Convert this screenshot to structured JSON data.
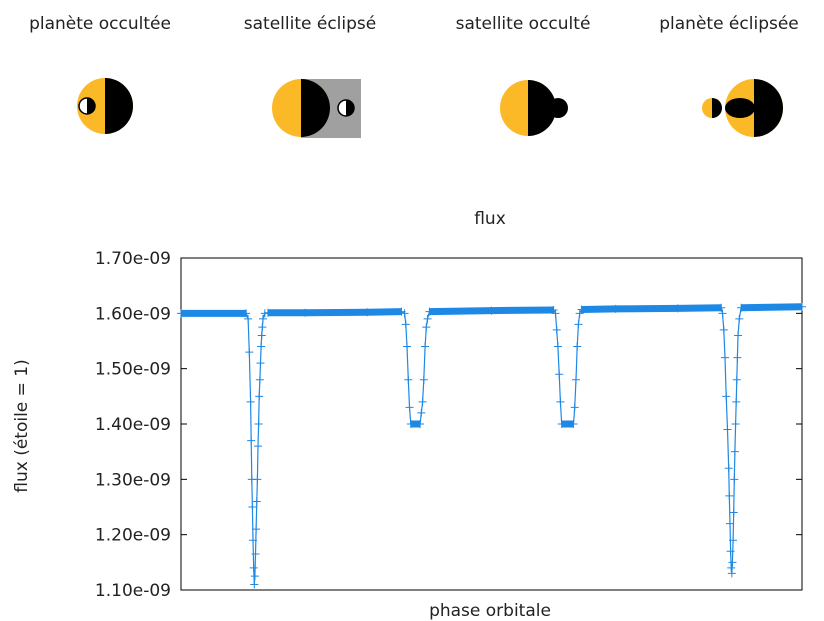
{
  "phases": [
    {
      "label": "planète occultée"
    },
    {
      "label": "satellite éclipsé"
    },
    {
      "label": "satellite occulté"
    },
    {
      "label": "planète éclipsée"
    }
  ],
  "colors": {
    "star": "#fbb928",
    "shadow": "#000000",
    "eclipse_zone": "#a0a0a0",
    "series": "#1e88e5"
  },
  "chart_data": {
    "type": "line",
    "title": "flux",
    "xlabel": "phase orbitale",
    "ylabel": "flux (étoile = 1)",
    "ylim": [
      1.1e-09,
      1.7e-09
    ],
    "yticks": [
      "1.10e-09",
      "1.20e-09",
      "1.30e-09",
      "1.40e-09",
      "1.50e-09",
      "1.60e-09",
      "1.70e-09"
    ],
    "ytick_values": [
      1.1e-09,
      1.2e-09,
      1.3e-09,
      1.4e-09,
      1.5e-09,
      1.6e-09,
      1.7e-09
    ],
    "xlim": [
      0,
      1
    ],
    "grid": false,
    "marker": "+",
    "series": [
      {
        "values": [
          [
            0.0,
            1.6e-09
          ],
          [
            0.105,
            1.6e-09
          ],
          [
            0.108,
            1.59e-09
          ],
          [
            0.11,
            1.53e-09
          ],
          [
            0.112,
            1.44e-09
          ],
          [
            0.113,
            1.37e-09
          ],
          [
            0.114,
            1.3e-09
          ],
          [
            0.115,
            1.25e-09
          ],
          [
            0.116,
            1.19e-09
          ],
          [
            0.117,
            1.14e-09
          ],
          [
            0.118,
            1.11e-09
          ],
          [
            0.119,
            1.125e-09
          ],
          [
            0.12,
            1.165e-09
          ],
          [
            0.121,
            1.21e-09
          ],
          [
            0.122,
            1.26e-09
          ],
          [
            0.123,
            1.3e-09
          ],
          [
            0.124,
            1.36e-09
          ],
          [
            0.125,
            1.4e-09
          ],
          [
            0.126,
            1.45e-09
          ],
          [
            0.127,
            1.48e-09
          ],
          [
            0.128,
            1.51e-09
          ],
          [
            0.129,
            1.54e-09
          ],
          [
            0.13,
            1.56e-09
          ],
          [
            0.131,
            1.575e-09
          ],
          [
            0.132,
            1.59e-09
          ],
          [
            0.135,
            1.6e-09
          ],
          [
            0.14,
            1.601e-09
          ],
          [
            0.2,
            1.601e-09
          ],
          [
            0.3,
            1.602e-09
          ],
          [
            0.355,
            1.603e-09
          ],
          [
            0.36,
            1.6e-09
          ],
          [
            0.362,
            1.58e-09
          ],
          [
            0.364,
            1.54e-09
          ],
          [
            0.366,
            1.48e-09
          ],
          [
            0.368,
            1.43e-09
          ],
          [
            0.37,
            1.4e-09
          ],
          [
            0.385,
            1.4e-09
          ],
          [
            0.387,
            1.42e-09
          ],
          [
            0.389,
            1.44e-09
          ],
          [
            0.391,
            1.48e-09
          ],
          [
            0.393,
            1.54e-09
          ],
          [
            0.395,
            1.575e-09
          ],
          [
            0.397,
            1.59e-09
          ],
          [
            0.4,
            1.603e-09
          ],
          [
            0.5,
            1.605e-09
          ],
          [
            0.6,
            1.606e-09
          ],
          [
            0.603,
            1.6e-09
          ],
          [
            0.605,
            1.57e-09
          ],
          [
            0.607,
            1.54e-09
          ],
          [
            0.609,
            1.49e-09
          ],
          [
            0.611,
            1.44e-09
          ],
          [
            0.613,
            1.4e-09
          ],
          [
            0.632,
            1.4e-09
          ],
          [
            0.634,
            1.43e-09
          ],
          [
            0.636,
            1.48e-09
          ],
          [
            0.638,
            1.54e-09
          ],
          [
            0.64,
            1.58e-09
          ],
          [
            0.642,
            1.6e-09
          ],
          [
            0.645,
            1.607e-09
          ],
          [
            0.7,
            1.608e-09
          ],
          [
            0.8,
            1.609e-09
          ],
          [
            0.87,
            1.61e-09
          ],
          [
            0.872,
            1.6e-09
          ],
          [
            0.874,
            1.57e-09
          ],
          [
            0.876,
            1.52e-09
          ],
          [
            0.878,
            1.45e-09
          ],
          [
            0.88,
            1.39e-09
          ],
          [
            0.882,
            1.32e-09
          ],
          [
            0.883,
            1.27e-09
          ],
          [
            0.884,
            1.22e-09
          ],
          [
            0.885,
            1.17e-09
          ],
          [
            0.886,
            1.14e-09
          ],
          [
            0.887,
            1.13e-09
          ],
          [
            0.888,
            1.15e-09
          ],
          [
            0.889,
            1.19e-09
          ],
          [
            0.89,
            1.24e-09
          ],
          [
            0.891,
            1.3e-09
          ],
          [
            0.892,
            1.35e-09
          ],
          [
            0.893,
            1.4e-09
          ],
          [
            0.894,
            1.44e-09
          ],
          [
            0.895,
            1.48e-09
          ],
          [
            0.896,
            1.52e-09
          ],
          [
            0.897,
            1.56e-09
          ],
          [
            0.899,
            1.59e-09
          ],
          [
            0.902,
            1.61e-09
          ],
          [
            1.0,
            1.612e-09
          ]
        ]
      }
    ]
  }
}
